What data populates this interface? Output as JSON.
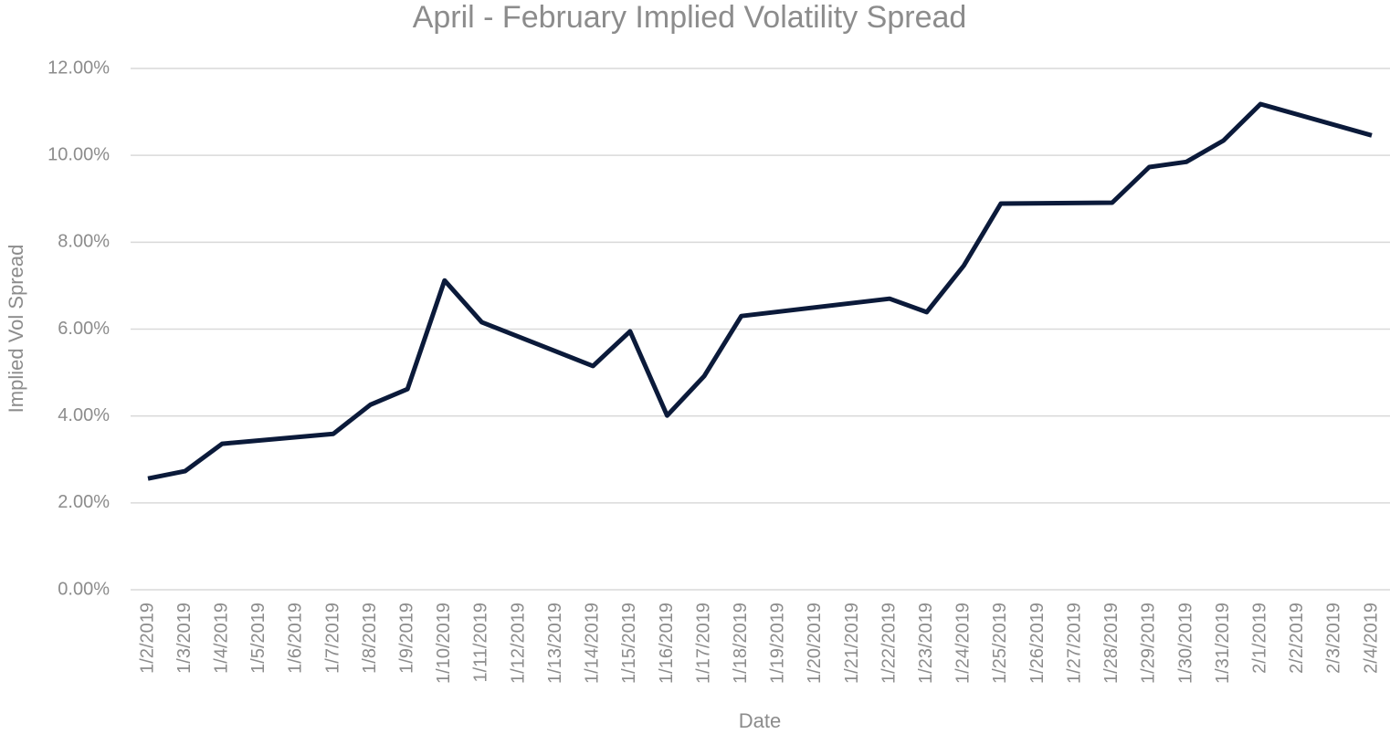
{
  "chart_data": {
    "type": "line",
    "title": "April - February Implied Volatility Spread",
    "xlabel": "Date",
    "ylabel": "Implied Vol Spread",
    "xticks": [
      "1/2/2019",
      "1/3/2019",
      "1/4/2019",
      "1/5/2019",
      "1/6/2019",
      "1/7/2019",
      "1/8/2019",
      "1/9/2019",
      "1/10/2019",
      "1/11/2019",
      "1/12/2019",
      "1/13/2019",
      "1/14/2019",
      "1/15/2019",
      "1/16/2019",
      "1/17/2019",
      "1/18/2019",
      "1/19/2019",
      "1/20/2019",
      "1/21/2019",
      "1/22/2019",
      "1/23/2019",
      "1/24/2019",
      "1/25/2019",
      "1/26/2019",
      "1/27/2019",
      "1/28/2019",
      "1/29/2019",
      "1/30/2019",
      "1/31/2019",
      "2/1/2019",
      "2/2/2019",
      "2/3/2019",
      "2/4/2019"
    ],
    "x": [
      "1/2/2019",
      "1/3/2019",
      "1/4/2019",
      "1/7/2019",
      "1/8/2019",
      "1/9/2019",
      "1/10/2019",
      "1/11/2019",
      "1/14/2019",
      "1/15/2019",
      "1/16/2019",
      "1/17/2019",
      "1/18/2019",
      "1/22/2019",
      "1/23/2019",
      "1/24/2019",
      "1/25/2019",
      "1/28/2019",
      "1/29/2019",
      "1/30/2019",
      "1/31/2019",
      "2/1/2019",
      "2/4/2019"
    ],
    "series": [
      {
        "color": "#0b1a3a",
        "values": [
          2.56,
          2.73,
          3.36,
          3.59,
          4.26,
          4.62,
          7.12,
          6.16,
          5.15,
          5.95,
          4.01,
          4.92,
          6.3,
          6.7,
          6.39,
          7.46,
          8.89,
          8.91,
          9.73,
          9.85,
          10.34,
          11.18,
          10.46
        ]
      }
    ],
    "ylim": [
      0,
      12
    ],
    "yticks": [
      {
        "value": 0,
        "label": "0.00%"
      },
      {
        "value": 2,
        "label": "2.00%"
      },
      {
        "value": 4,
        "label": "4.00%"
      },
      {
        "value": 6,
        "label": "6.00%"
      },
      {
        "value": 8,
        "label": "8.00%"
      },
      {
        "value": 10,
        "label": "10.00%"
      },
      {
        "value": 12,
        "label": "12.00%"
      }
    ],
    "grid": true
  }
}
